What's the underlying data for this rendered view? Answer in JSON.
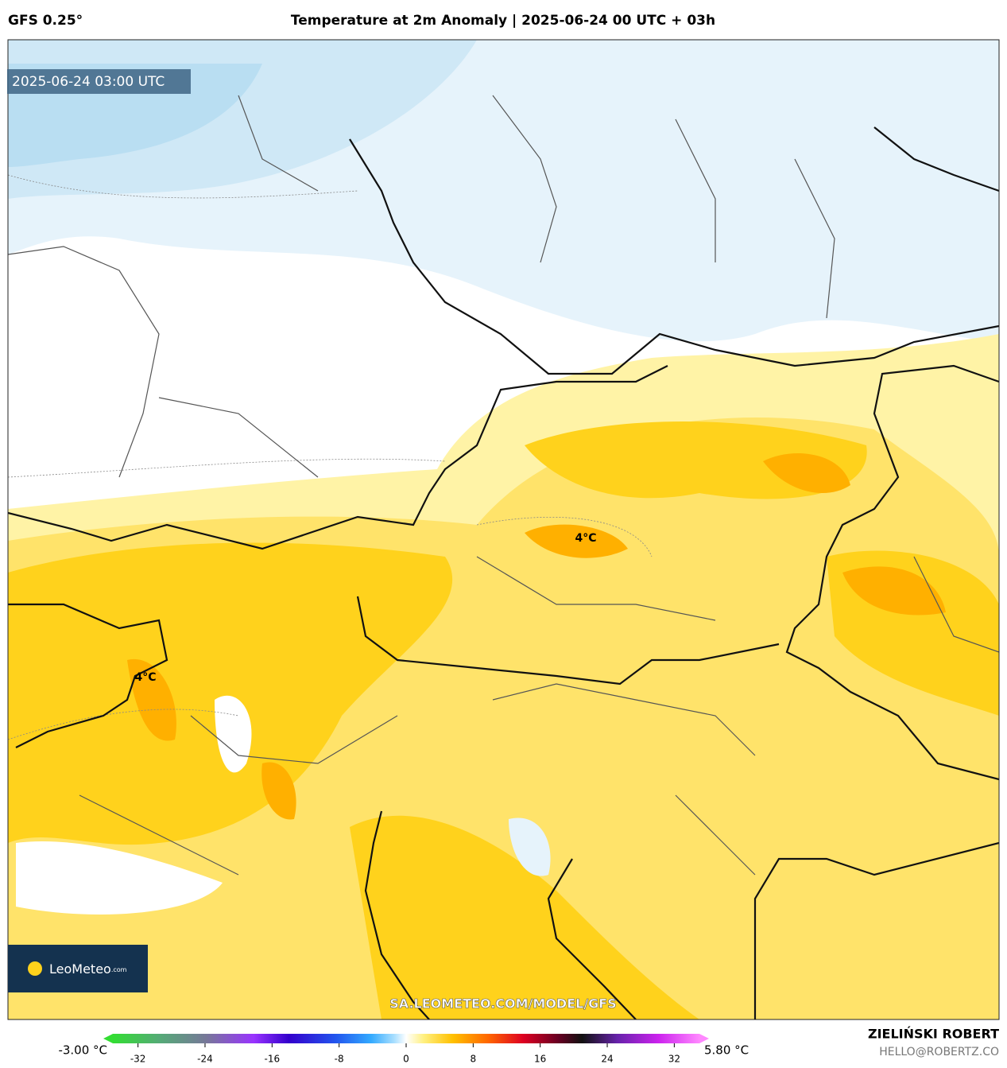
{
  "header": {
    "model": "GFS 0.25°",
    "title": "Temperature at 2m Anomaly | 2025-06-24 00 UTC + 03h"
  },
  "map": {
    "timestamp": "2025-06-24 03:00 UTC",
    "contour_labels": [
      "4°C",
      "4°C"
    ],
    "watermark": "SA.LEOMETEO.COM/MODEL/GFS",
    "logo": "LeoMeteo",
    "logo_suffix": ".com"
  },
  "colorbar": {
    "min_label": "-3.00 °C",
    "max_label": "5.80 °C",
    "lim": [
      -35,
      35
    ],
    "ticks": [
      -32,
      -24,
      -16,
      -8,
      0,
      8,
      16,
      24,
      32
    ]
  },
  "footer": {
    "author": "ZIELIŃSKI ROBERT",
    "contact": "HELLO@ROBERTZ.CO"
  }
}
